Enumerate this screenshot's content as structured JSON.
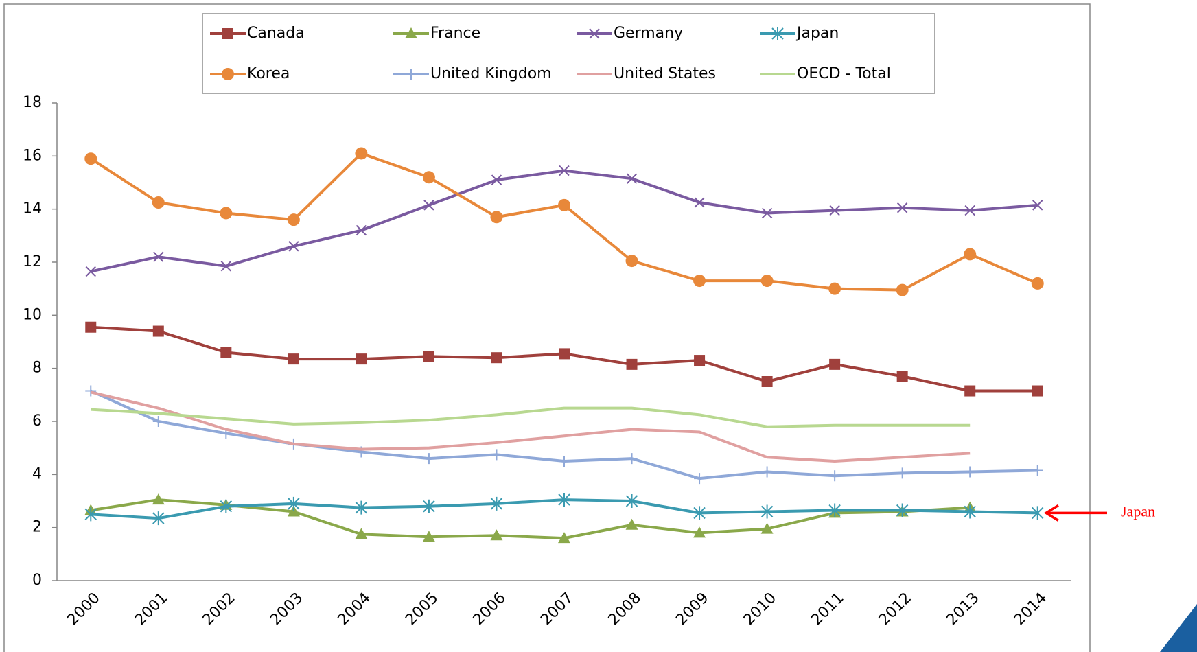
{
  "chart_data": {
    "type": "line",
    "categories": [
      "2000",
      "2001",
      "2002",
      "2003",
      "2004",
      "2005",
      "2006",
      "2007",
      "2008",
      "2009",
      "2010",
      "2011",
      "2012",
      "2013",
      "2014"
    ],
    "series": [
      {
        "name": "Canada",
        "color": "#a0403c",
        "marker": "square",
        "values": [
          9.55,
          9.4,
          8.6,
          8.35,
          8.35,
          8.45,
          8.4,
          8.55,
          8.15,
          8.3,
          7.5,
          8.15,
          7.7,
          7.15,
          7.15
        ]
      },
      {
        "name": "France",
        "color": "#8aa84a",
        "marker": "triangle",
        "values": [
          2.65,
          3.05,
          2.85,
          2.6,
          1.75,
          1.65,
          1.7,
          1.6,
          2.1,
          1.8,
          1.95,
          2.55,
          2.6,
          2.75,
          null
        ]
      },
      {
        "name": "Germany",
        "color": "#7a5aa0",
        "marker": "x",
        "values": [
          11.65,
          12.2,
          11.85,
          12.6,
          13.2,
          14.15,
          15.1,
          15.45,
          15.15,
          14.25,
          13.85,
          13.95,
          14.05,
          13.95,
          14.15
        ]
      },
      {
        "name": "Japan",
        "color": "#3a9ab0",
        "marker": "star",
        "values": [
          2.5,
          2.35,
          2.8,
          2.9,
          2.75,
          2.8,
          2.9,
          3.05,
          3.0,
          2.55,
          2.6,
          2.65,
          2.65,
          2.6,
          2.55
        ]
      },
      {
        "name": "Korea",
        "color": "#e8883a",
        "marker": "circle",
        "values": [
          15.9,
          14.25,
          13.85,
          13.6,
          16.1,
          15.2,
          13.7,
          14.15,
          12.05,
          11.3,
          11.3,
          11.0,
          10.95,
          12.3,
          11.2
        ]
      },
      {
        "name": "United Kingdom",
        "color": "#8fa8d8",
        "marker": "plus",
        "values": [
          7.15,
          6.0,
          5.55,
          5.15,
          4.85,
          4.6,
          4.75,
          4.5,
          4.6,
          3.85,
          4.1,
          3.95,
          4.05,
          4.1,
          4.15
        ]
      },
      {
        "name": "United States",
        "color": "#e0a0a0",
        "marker": "none",
        "values": [
          7.1,
          6.5,
          5.7,
          5.15,
          4.95,
          5.0,
          5.2,
          5.45,
          5.7,
          5.6,
          4.65,
          4.5,
          4.65,
          4.8,
          null
        ]
      },
      {
        "name": "OECD - Total",
        "color": "#b8d890",
        "marker": "none",
        "values": [
          6.45,
          6.3,
          6.1,
          5.9,
          5.95,
          6.05,
          6.25,
          6.5,
          6.5,
          6.25,
          5.8,
          5.85,
          5.85,
          5.85,
          null
        ]
      }
    ],
    "ylim": [
      0,
      18
    ],
    "yticks": [
      0,
      2,
      4,
      6,
      8,
      10,
      12,
      14,
      16,
      18
    ],
    "annotations": [
      {
        "text": "Japan",
        "color": "#ff0000"
      }
    ]
  }
}
